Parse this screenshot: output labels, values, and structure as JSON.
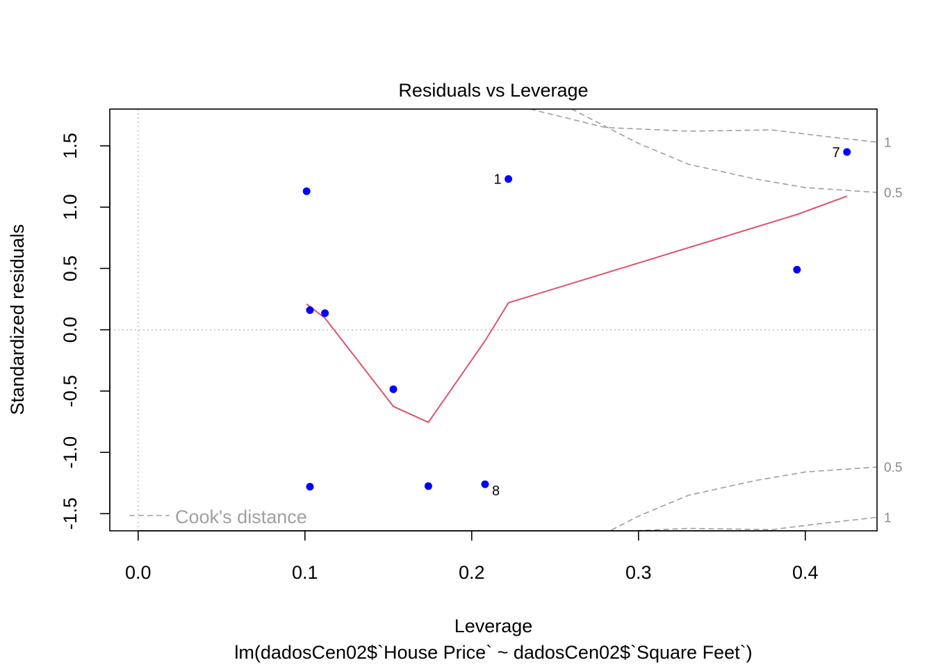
{
  "chart_data": {
    "type": "scatter",
    "title": "Residuals vs Leverage",
    "xlabel": "Leverage",
    "ylabel": "Standardized residuals",
    "subtitle": "lm(dadosCen02$`House Price` ~ dadosCen02$`Square Feet`)",
    "xlim": [
      -0.017,
      0.443
    ],
    "ylim": [
      -1.64,
      1.8
    ],
    "x_ticks": [
      "0.0",
      "0.1",
      "0.2",
      "0.3",
      "0.4"
    ],
    "x_tick_values": [
      0.0,
      0.1,
      0.2,
      0.3,
      0.4
    ],
    "y_ticks": [
      "-1.5",
      "-1.0",
      "-0.5",
      "0.0",
      "0.5",
      "1.0",
      "1.5"
    ],
    "y_tick_values": [
      -1.5,
      -1.0,
      -0.5,
      0.0,
      0.5,
      1.0,
      1.5
    ],
    "points": [
      {
        "x": 0.101,
        "y": 1.13
      },
      {
        "x": 0.103,
        "y": 0.16
      },
      {
        "x": 0.112,
        "y": 0.135
      },
      {
        "x": 0.153,
        "y": -0.485
      },
      {
        "x": 0.103,
        "y": -1.28
      },
      {
        "x": 0.174,
        "y": -1.275
      },
      {
        "x": 0.208,
        "y": -1.26,
        "label": "8"
      },
      {
        "x": 0.222,
        "y": 1.23,
        "label": "1"
      },
      {
        "x": 0.395,
        "y": 0.49
      },
      {
        "x": 0.425,
        "y": 1.45,
        "label": "7"
      }
    ],
    "smooth_line": {
      "x": [
        0.101,
        0.112,
        0.153,
        0.174,
        0.208,
        0.222,
        0.395,
        0.425
      ],
      "y": [
        0.21,
        0.095,
        -0.625,
        -0.755,
        -0.09,
        0.22,
        0.94,
        1.09
      ]
    },
    "cooks_distance": {
      "legend": "Cook's distance",
      "levels": [
        {
          "label": "1",
          "x": [
            0.235,
            0.28,
            0.33,
            0.38,
            0.41,
            0.443
          ],
          "y_upper": [
            1.8,
            1.65,
            1.62,
            1.63,
            1.58,
            1.53
          ],
          "y_lower": [
            -1.8,
            -1.65,
            -1.62,
            -1.63,
            -1.58,
            -1.53
          ]
        },
        {
          "label": "0.5",
          "x": [
            0.23,
            0.26,
            0.3,
            0.33,
            0.37,
            0.4,
            0.443
          ],
          "y_upper": [
            1.98,
            1.8,
            1.52,
            1.35,
            1.23,
            1.16,
            1.12
          ],
          "y_lower": [
            -1.98,
            -1.8,
            -1.52,
            -1.35,
            -1.23,
            -1.16,
            -1.12
          ]
        }
      ]
    },
    "colors": {
      "points": "#0000ff",
      "smooth": "#df536b",
      "cooks": "#9e9e9e",
      "refline": "#bebebe"
    }
  }
}
